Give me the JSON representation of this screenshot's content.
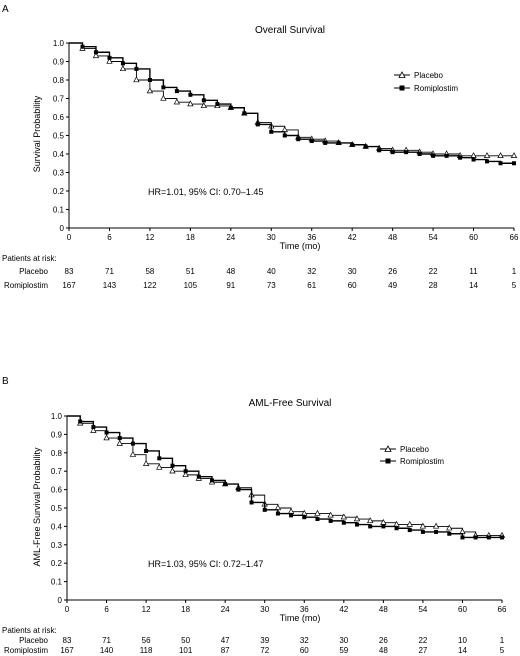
{
  "panels": [
    {
      "panel_label": "A",
      "title": "Overall Survival",
      "ylabel": "Survival Probability",
      "xlabel": "Time (mo)",
      "hr_text": "HR=1.01, 95% CI: 0.70–1.45",
      "risk_header": "Patients at risk:",
      "risk_rows": [
        {
          "label": "Placebo",
          "values": [
            "83",
            "71",
            "58",
            "51",
            "48",
            "40",
            "32",
            "30",
            "26",
            "22",
            "11",
            "1"
          ]
        },
        {
          "label": "Romiplostim",
          "values": [
            "167",
            "143",
            "122",
            "105",
            "91",
            "73",
            "61",
            "60",
            "49",
            "28",
            "14",
            "5"
          ]
        }
      ]
    },
    {
      "panel_label": "B",
      "title": "AML-Free Survival",
      "ylabel": "AML-Free Survival Probability",
      "xlabel": "Time (mo)",
      "hr_text": "HR=1.03, 95% CI: 0.72–1.47",
      "risk_header": "Patients at risk:",
      "risk_rows": [
        {
          "label": "Placebo",
          "values": [
            "83",
            "71",
            "56",
            "50",
            "47",
            "39",
            "32",
            "30",
            "26",
            "22",
            "10",
            "1"
          ]
        },
        {
          "label": "Romiplostim",
          "values": [
            "167",
            "140",
            "118",
            "101",
            "87",
            "72",
            "60",
            "59",
            "48",
            "27",
            "14",
            "5"
          ]
        }
      ]
    }
  ],
  "chart_data": [
    {
      "type": "line",
      "title": "Overall Survival",
      "xlabel": "Time (mo)",
      "ylabel": "Survival Probability",
      "xlim": [
        0,
        66
      ],
      "ylim": [
        0,
        1.0
      ],
      "xticks": [
        0,
        6,
        12,
        18,
        24,
        30,
        36,
        42,
        48,
        54,
        60,
        66
      ],
      "yticks": [
        0,
        0.1,
        0.2,
        0.3,
        0.4,
        0.5,
        0.6,
        0.7,
        0.8,
        0.9,
        1.0
      ],
      "legend_position": "upper-right",
      "series": [
        {
          "name": "Placebo",
          "marker": "open-triangle",
          "x": [
            0,
            2,
            4,
            6,
            8,
            10,
            12,
            14,
            16,
            18,
            20,
            22,
            24,
            26,
            28,
            30,
            32,
            34,
            36,
            38,
            40,
            42,
            44,
            46,
            48,
            50,
            52,
            54,
            56,
            58,
            60,
            62,
            64,
            66
          ],
          "y": [
            1.0,
            0.97,
            0.93,
            0.9,
            0.86,
            0.8,
            0.74,
            0.7,
            0.68,
            0.67,
            0.66,
            0.66,
            0.65,
            0.62,
            0.57,
            0.55,
            0.53,
            0.49,
            0.48,
            0.47,
            0.46,
            0.45,
            0.44,
            0.43,
            0.42,
            0.42,
            0.41,
            0.4,
            0.4,
            0.39,
            0.39,
            0.39,
            0.39,
            0.39
          ]
        },
        {
          "name": "Romiplostim",
          "marker": "filled-square",
          "x": [
            0,
            2,
            4,
            6,
            8,
            10,
            12,
            14,
            16,
            18,
            20,
            22,
            24,
            26,
            28,
            30,
            32,
            34,
            36,
            38,
            40,
            42,
            44,
            46,
            48,
            50,
            52,
            54,
            56,
            58,
            60,
            62,
            64,
            66
          ],
          "y": [
            1.0,
            0.98,
            0.95,
            0.92,
            0.89,
            0.86,
            0.8,
            0.76,
            0.74,
            0.72,
            0.69,
            0.67,
            0.65,
            0.62,
            0.56,
            0.52,
            0.5,
            0.48,
            0.47,
            0.46,
            0.46,
            0.45,
            0.44,
            0.42,
            0.41,
            0.41,
            0.4,
            0.39,
            0.39,
            0.38,
            0.37,
            0.36,
            0.35,
            0.35
          ]
        }
      ]
    },
    {
      "type": "line",
      "title": "AML-Free Survival",
      "xlabel": "Time (mo)",
      "ylabel": "AML-Free Survival Probability",
      "xlim": [
        0,
        66
      ],
      "ylim": [
        0,
        1.0
      ],
      "xticks": [
        0,
        6,
        12,
        18,
        24,
        30,
        36,
        42,
        48,
        54,
        60,
        66
      ],
      "yticks": [
        0,
        0.1,
        0.2,
        0.3,
        0.4,
        0.5,
        0.6,
        0.7,
        0.8,
        0.9,
        1.0
      ],
      "legend_position": "upper-right",
      "series": [
        {
          "name": "Placebo",
          "marker": "open-triangle",
          "x": [
            0,
            2,
            4,
            6,
            8,
            10,
            12,
            14,
            16,
            18,
            20,
            22,
            24,
            26,
            28,
            30,
            32,
            34,
            36,
            38,
            40,
            42,
            44,
            46,
            48,
            50,
            52,
            54,
            56,
            58,
            60,
            62,
            64,
            66
          ],
          "y": [
            1.0,
            0.96,
            0.92,
            0.88,
            0.85,
            0.79,
            0.74,
            0.72,
            0.7,
            0.68,
            0.66,
            0.64,
            0.63,
            0.61,
            0.57,
            0.52,
            0.5,
            0.48,
            0.47,
            0.47,
            0.46,
            0.45,
            0.44,
            0.43,
            0.42,
            0.41,
            0.41,
            0.4,
            0.4,
            0.39,
            0.37,
            0.35,
            0.35,
            0.35
          ]
        },
        {
          "name": "Romiplostim",
          "marker": "filled-square",
          "x": [
            0,
            2,
            4,
            6,
            8,
            10,
            12,
            14,
            16,
            18,
            20,
            22,
            24,
            26,
            28,
            30,
            32,
            34,
            36,
            38,
            40,
            42,
            44,
            46,
            48,
            50,
            52,
            54,
            56,
            58,
            60,
            62,
            64,
            66
          ],
          "y": [
            1.0,
            0.97,
            0.94,
            0.91,
            0.88,
            0.85,
            0.81,
            0.77,
            0.73,
            0.7,
            0.67,
            0.65,
            0.63,
            0.6,
            0.53,
            0.49,
            0.47,
            0.46,
            0.45,
            0.44,
            0.43,
            0.42,
            0.41,
            0.4,
            0.4,
            0.39,
            0.38,
            0.37,
            0.37,
            0.36,
            0.34,
            0.34,
            0.34,
            0.34
          ]
        }
      ]
    }
  ]
}
